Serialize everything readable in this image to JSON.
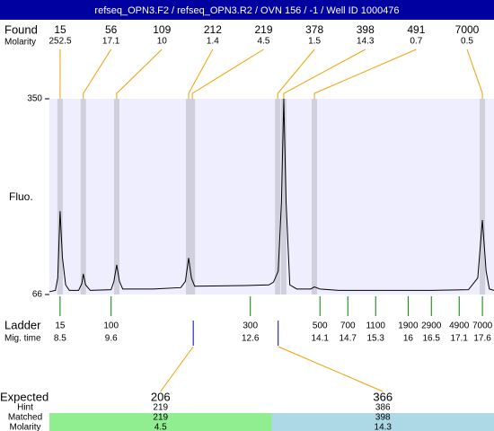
{
  "chart_data": {
    "type": "electropherogram",
    "title": "refseq_OPN3.F2 / refseq_OPN3.R2 / OVN 156 / -1 / Well ID 1000476",
    "y_label": "Fluo.",
    "ylim": [
      66,
      350
    ],
    "yticks": [
      66,
      350
    ],
    "xlim": [
      8.27,
      17.85
    ],
    "found": {
      "label": "Found",
      "molarity_label": "Molarity",
      "sizes": [
        15,
        56,
        109,
        212,
        219,
        378,
        398,
        491,
        7000
      ],
      "molarity": [
        252.5,
        17.1,
        10,
        1.4,
        4.5,
        1.5,
        14.3,
        0.7,
        0.5
      ],
      "times": [
        8.5,
        9.0,
        9.72,
        11.27,
        11.35,
        13.19,
        13.32,
        13.98,
        17.6
      ]
    },
    "ladder": {
      "label": "Ladder",
      "time_label": "Mig. time",
      "sizes": [
        15,
        100,
        300,
        500,
        700,
        1100,
        1900,
        2900,
        4900,
        7000
      ],
      "times": [
        8.5,
        9.6,
        12.6,
        14.1,
        14.7,
        15.3,
        16,
        16.5,
        17.1,
        17.6
      ]
    },
    "trace": {
      "x": [
        8.27,
        8.4,
        8.45,
        8.5,
        8.55,
        8.62,
        8.7,
        8.9,
        8.97,
        9.0,
        9.05,
        9.15,
        9.6,
        9.66,
        9.72,
        9.78,
        9.85,
        10.5,
        11.1,
        11.2,
        11.27,
        11.33,
        11.4,
        12.5,
        13.0,
        13.1,
        13.2,
        13.27,
        13.32,
        13.37,
        13.45,
        13.6,
        13.9,
        13.98,
        14.1,
        14.5,
        15.5,
        16.5,
        17.3,
        17.5,
        17.6,
        17.68,
        17.75,
        17.85
      ],
      "values": [
        70,
        72,
        90,
        187,
        120,
        80,
        72,
        72,
        82,
        96,
        80,
        72,
        73,
        85,
        109,
        85,
        74,
        74,
        76,
        85,
        119,
        90,
        78,
        79,
        80,
        84,
        100,
        200,
        350,
        200,
        80,
        74,
        74,
        77,
        74,
        72,
        72,
        72,
        73,
        90,
        174,
        100,
        74,
        72
      ]
    },
    "expected": {
      "label": "Expected",
      "row_labels": [
        "Hint",
        "Matched",
        "Molarity"
      ],
      "sizes": [
        206,
        366
      ],
      "times": [
        11.37,
        13.2
      ],
      "hint": [
        219,
        386
      ],
      "matched": [
        219,
        398
      ],
      "molarity": [
        4.5,
        14.3
      ],
      "colors": [
        "#90ee90",
        "#add8e6"
      ]
    },
    "colors": {
      "title_bar": "#0000a0",
      "plot": "#eeeeff",
      "band": "#d0d0dc",
      "connector": "#f0a000",
      "ladder_tick": "#008000",
      "expected_tick": "#0000c0",
      "trace": "#000000"
    }
  }
}
